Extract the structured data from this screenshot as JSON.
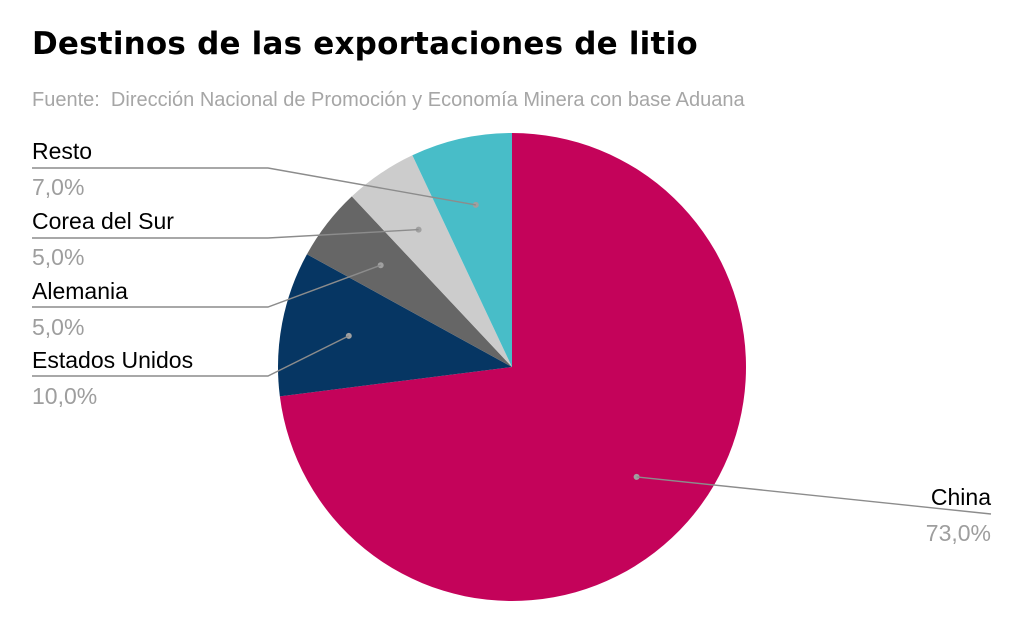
{
  "title": "Destinos de las exportaciones de litio",
  "subtitle": "Fuente:  Dirección Nacional de Promoción y Economía Minera con base Aduana",
  "chart_data": {
    "type": "pie",
    "title": "Destinos de las exportaciones de litio",
    "subtitle": "Fuente:  Dirección Nacional de Promoción y Economía Minera con base Aduana",
    "slices": [
      {
        "label": "China",
        "value": 73.0,
        "display": "73,0%",
        "color": "#c4035a"
      },
      {
        "label": "Estados Unidos",
        "value": 10.0,
        "display": "10,0%",
        "color": "#063663"
      },
      {
        "label": "Alemania",
        "value": 5.0,
        "display": "5,0%",
        "color": "#666666"
      },
      {
        "label": "Corea del Sur",
        "value": 5.0,
        "display": "5,0%",
        "color": "#cccccc"
      },
      {
        "label": "Resto",
        "value": 7.0,
        "display": "7,0%",
        "color": "#48bdc8"
      }
    ],
    "start_angle": "12 o'clock",
    "direction": "clockwise",
    "legend": "none"
  }
}
